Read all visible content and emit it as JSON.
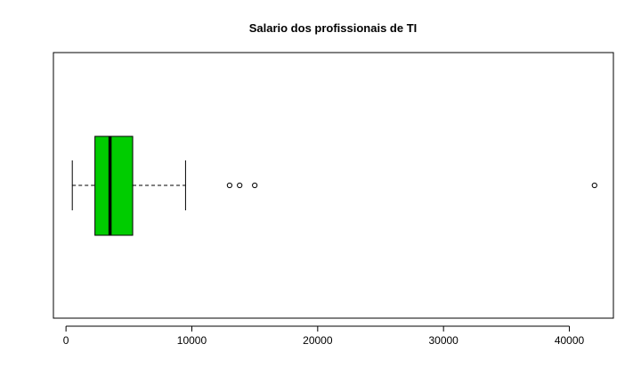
{
  "chart_data": {
    "type": "boxplot",
    "orientation": "horizontal",
    "title": "Salario dos profissionais de TI",
    "xlabel": "",
    "ylabel": "",
    "xlim": [
      -1000,
      43500
    ],
    "xticks": [
      0,
      10000,
      20000,
      30000,
      40000
    ],
    "xtick_labels": [
      "0",
      "10000",
      "20000",
      "30000",
      "40000"
    ],
    "grid": false,
    "box_color": "#00cc00",
    "series": [
      {
        "whisker_low": 500,
        "q1": 2300,
        "median": 3500,
        "q3": 5300,
        "whisker_high": 9500,
        "outliers": [
          13000,
          13800,
          15000,
          42000
        ]
      }
    ]
  }
}
